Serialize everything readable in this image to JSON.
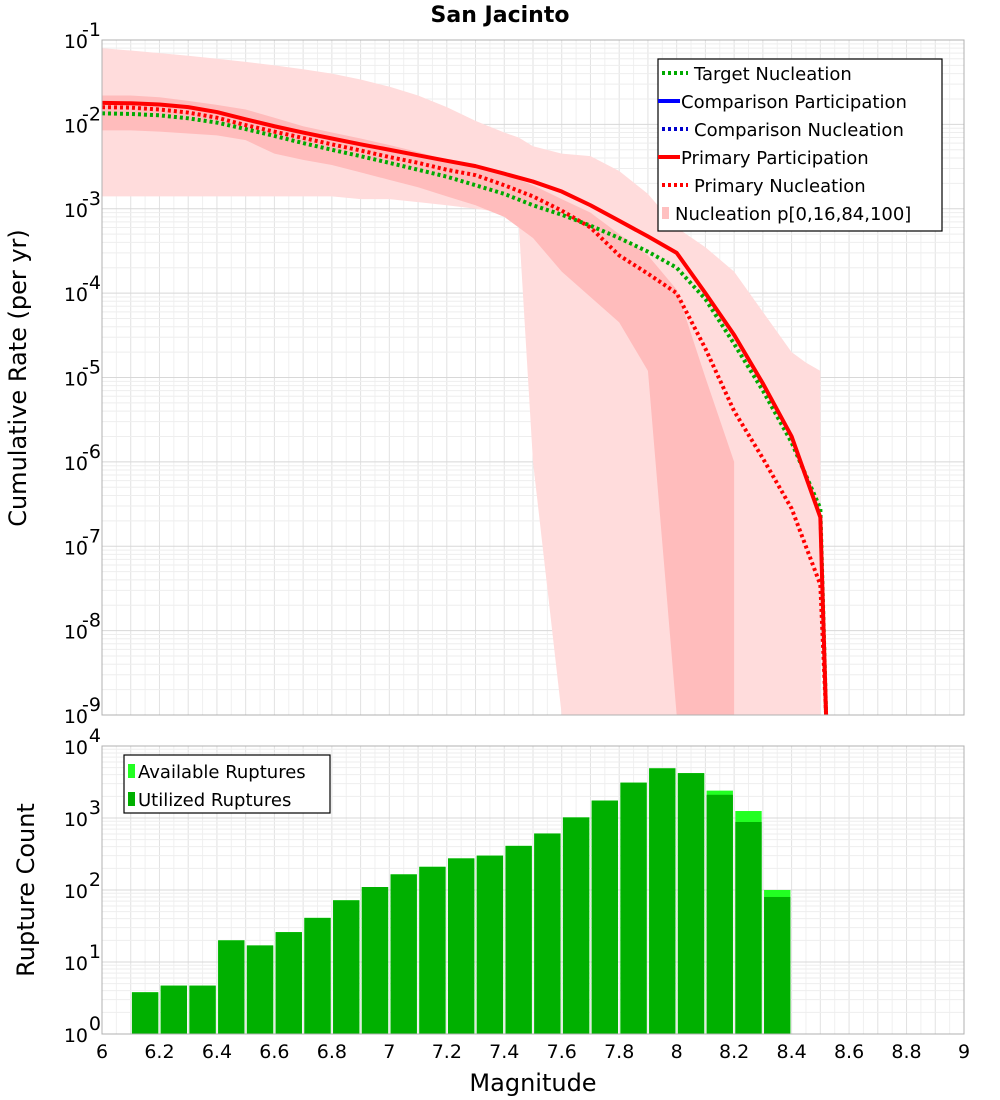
{
  "chart_data": [
    {
      "type": "line",
      "title": "San Jacinto",
      "ylabel": "Cumulative Rate (per yr)",
      "xlabel": "",
      "y_scale": "log",
      "xlim": [
        6,
        9
      ],
      "ylim_exp": [
        -9,
        -1
      ],
      "grid": true,
      "legend_position": "top-right",
      "y_tick_base": "10",
      "y_tick_exponents": [
        "-9",
        "-8",
        "-7",
        "-6",
        "-5",
        "-4",
        "-3",
        "-2",
        "-1"
      ],
      "legend": [
        {
          "label": "Target Nucleation",
          "color": "#00aa00",
          "style": "dotted"
        },
        {
          "label": "Comparison Participation",
          "color": "#0000ff",
          "style": "solid"
        },
        {
          "label": "Comparison Nucleation",
          "color": "#0000cc",
          "style": "dotted"
        },
        {
          "label": "Primary Participation",
          "color": "#ff0000",
          "style": "solid"
        },
        {
          "label": "Primary Nucleation",
          "color": "#ff0000",
          "style": "dotted"
        },
        {
          "label": "Nucleation p[0,16,84,100]",
          "color": "#ffc0c0",
          "style": "band"
        }
      ],
      "bands": [
        {
          "name": "p0-p100",
          "color": "#ffdcdc",
          "x": [
            6.0,
            6.1,
            6.2,
            6.3,
            6.4,
            6.5,
            6.6,
            6.7,
            6.8,
            6.9,
            7.0,
            7.1,
            7.2,
            7.3,
            7.4,
            7.45,
            7.5,
            7.6,
            7.7,
            7.8,
            7.9,
            8.0,
            8.1,
            8.2,
            8.3,
            8.4,
            8.45,
            8.5
          ],
          "upper": [
            0.08,
            0.075,
            0.07,
            0.065,
            0.06,
            0.055,
            0.05,
            0.045,
            0.04,
            0.034,
            0.028,
            0.022,
            0.016,
            0.011,
            0.008,
            0.007,
            0.0055,
            0.0045,
            0.0042,
            0.0028,
            0.0015,
            0.0006,
            0.00035,
            0.00018,
            6e-05,
            2e-05,
            1.5e-05,
            1.2e-05
          ],
          "lower": [
            0.0014,
            0.0014,
            0.0014,
            0.0014,
            0.0014,
            0.0014,
            0.0014,
            0.0014,
            0.0014,
            0.0013,
            0.0013,
            0.0012,
            0.0011,
            0.001,
            0.0009,
            0.0007,
            1e-06,
            1e-10,
            1e-10,
            1e-10,
            1e-10,
            1e-10,
            1e-10,
            1e-10,
            1e-10,
            1e-10,
            1e-10,
            1e-10
          ]
        },
        {
          "name": "p16-p84",
          "color": "#ffbcbc",
          "x": [
            6.0,
            6.1,
            6.2,
            6.3,
            6.4,
            6.5,
            6.6,
            6.7,
            6.8,
            6.9,
            7.0,
            7.1,
            7.2,
            7.3,
            7.4,
            7.5,
            7.6,
            7.7,
            7.8,
            7.9,
            8.0,
            8.1,
            8.2
          ],
          "upper": [
            0.022,
            0.022,
            0.021,
            0.019,
            0.017,
            0.015,
            0.012,
            0.0095,
            0.008,
            0.0068,
            0.0057,
            0.0047,
            0.0038,
            0.0032,
            0.0026,
            0.0019,
            0.0013,
            0.0009,
            0.0005,
            0.00028,
            0.00011,
            1e-05,
            1e-06
          ],
          "lower": [
            0.0085,
            0.0085,
            0.0082,
            0.0078,
            0.0074,
            0.0065,
            0.0045,
            0.0038,
            0.0033,
            0.0027,
            0.0022,
            0.0018,
            0.0014,
            0.0011,
            0.0008,
            0.00045,
            0.00018,
            9e-05,
            4.5e-05,
            1.2e-05,
            1e-10,
            1e-10,
            1e-10
          ]
        }
      ],
      "series": [
        {
          "name": "Target Nucleation",
          "color": "#00aa00",
          "style": "dotted",
          "x": [
            6.0,
            6.1,
            6.2,
            6.3,
            6.4,
            6.5,
            6.6,
            6.7,
            6.8,
            6.9,
            7.0,
            7.1,
            7.2,
            7.3,
            7.4,
            7.5,
            7.6,
            7.7,
            7.8,
            7.9,
            8.0,
            8.1,
            8.2,
            8.3,
            8.4,
            8.5,
            8.52
          ],
          "y": [
            0.0135,
            0.0133,
            0.0128,
            0.0118,
            0.0105,
            0.0088,
            0.0073,
            0.006,
            0.005,
            0.0042,
            0.0035,
            0.0029,
            0.0024,
            0.0019,
            0.0015,
            0.0011,
            0.00085,
            0.00063,
            0.00045,
            0.00031,
            0.0002,
            8.5e-05,
            2.5e-05,
            7e-06,
            1.7e-06,
            2.8e-07,
            1e-10
          ]
        },
        {
          "name": "Primary Participation",
          "color": "#ff0000",
          "style": "solid",
          "x": [
            6.0,
            6.1,
            6.2,
            6.3,
            6.4,
            6.5,
            6.6,
            6.7,
            6.8,
            6.9,
            7.0,
            7.1,
            7.2,
            7.3,
            7.4,
            7.5,
            7.6,
            7.7,
            7.8,
            7.9,
            8.0,
            8.1,
            8.2,
            8.3,
            8.4,
            8.5,
            8.52
          ],
          "y": [
            0.018,
            0.0178,
            0.0172,
            0.016,
            0.014,
            0.0115,
            0.0095,
            0.008,
            0.0068,
            0.0058,
            0.005,
            0.0043,
            0.0037,
            0.0032,
            0.0026,
            0.0021,
            0.0016,
            0.0011,
            0.00072,
            0.00047,
            0.0003,
            0.0001,
            3.2e-05,
            8.5e-06,
            2e-06,
            2.2e-07,
            1e-10
          ]
        },
        {
          "name": "Primary Nucleation",
          "color": "#ff0000",
          "style": "dotted",
          "x": [
            6.0,
            6.1,
            6.2,
            6.3,
            6.4,
            6.5,
            6.6,
            6.7,
            6.8,
            6.9,
            7.0,
            7.1,
            7.2,
            7.3,
            7.4,
            7.5,
            7.6,
            7.7,
            7.8,
            7.9,
            8.0,
            8.1,
            8.2,
            8.3,
            8.4,
            8.5,
            8.52
          ],
          "y": [
            0.016,
            0.0158,
            0.015,
            0.0138,
            0.012,
            0.0098,
            0.0082,
            0.0069,
            0.0058,
            0.0049,
            0.0041,
            0.0035,
            0.0029,
            0.0025,
            0.0019,
            0.0014,
            0.00095,
            0.0006,
            0.00028,
            0.00017,
            0.0001,
            2.2e-05,
            4e-06,
            1.1e-06,
            2.8e-07,
            3.5e-08,
            1e-10
          ]
        }
      ]
    },
    {
      "type": "bar",
      "title": "",
      "xlabel": "Magnitude",
      "ylabel": "Rupture Count",
      "y_scale": "log",
      "xlim": [
        6,
        9
      ],
      "ylim_exp": [
        0,
        4
      ],
      "grid": true,
      "legend_position": "top-left",
      "y_tick_base": "10",
      "y_tick_exponents": [
        "0",
        "1",
        "2",
        "3",
        "4"
      ],
      "x_ticks": [
        "6",
        "6.2",
        "6.4",
        "6.6",
        "6.8",
        "7",
        "7.2",
        "7.4",
        "7.6",
        "7.8",
        "8",
        "8.2",
        "8.4",
        "8.6",
        "8.8",
        "9"
      ],
      "bin_width": 0.1,
      "legend": [
        {
          "label": "Available Ruptures",
          "color": "#22ff22"
        },
        {
          "label": "Utilized Ruptures",
          "color": "#00b000"
        }
      ],
      "bins": [
        6.15,
        6.25,
        6.35,
        6.45,
        6.55,
        6.65,
        6.75,
        6.85,
        6.95,
        7.05,
        7.15,
        7.25,
        7.35,
        7.45,
        7.55,
        7.65,
        7.75,
        7.85,
        7.95,
        8.05,
        8.15,
        8.25,
        8.35
      ],
      "series": [
        {
          "name": "Available Ruptures",
          "color": "#22ff22",
          "values": [
            3.8,
            4.7,
            4.7,
            20,
            17,
            26,
            41,
            72,
            110,
            165,
            210,
            275,
            300,
            410,
            610,
            1020,
            1750,
            3100,
            4900,
            4200,
            2400,
            1250,
            100
          ]
        },
        {
          "name": "Utilized Ruptures",
          "color": "#00b000",
          "values": [
            3.8,
            4.7,
            4.7,
            20,
            17,
            26,
            41,
            72,
            110,
            165,
            210,
            275,
            300,
            410,
            610,
            1020,
            1750,
            3100,
            4900,
            4200,
            2100,
            880,
            80
          ]
        }
      ]
    }
  ]
}
